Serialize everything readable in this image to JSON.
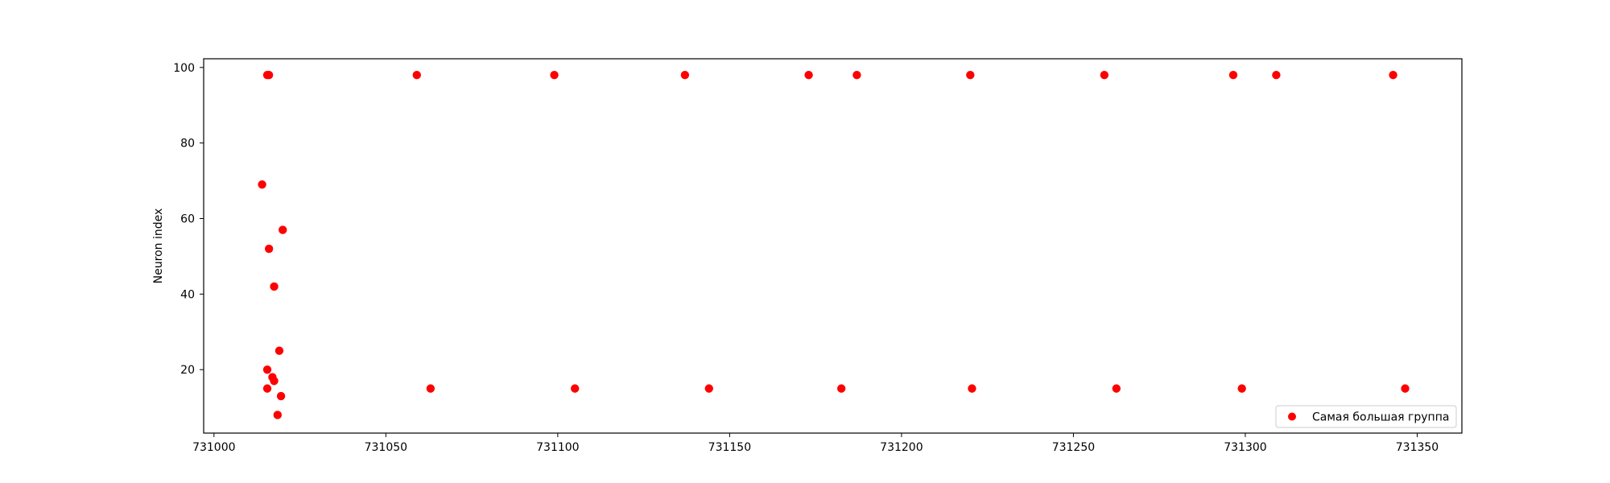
{
  "chart_data": {
    "type": "scatter",
    "title": "",
    "xlabel": "",
    "ylabel": "Neuron index",
    "xlim": [
      730997,
      731363
    ],
    "ylim": [
      3.2,
      102.3
    ],
    "xticks": [
      731000,
      731050,
      731100,
      731150,
      731200,
      731250,
      731300,
      731350
    ],
    "yticks": [
      20,
      40,
      60,
      80,
      100
    ],
    "grid": false,
    "legend_position": "lower-right",
    "series": [
      {
        "name": "Самая большая группа",
        "color": "#ff0000",
        "marker": "circle",
        "x": [
          731014,
          731015.5,
          731015.5,
          731016,
          731015.5,
          731017,
          731017.5,
          731017.5,
          731018.5,
          731019,
          731019.5,
          731020,
          731016,
          731059,
          731063,
          731099,
          731105,
          731137,
          731144,
          731173,
          731182.5,
          731187,
          731220,
          731220.5,
          731259,
          731262.5,
          731296.5,
          731299,
          731309,
          731343,
          731346.5
        ],
        "y": [
          69,
          20,
          15,
          52,
          98,
          18,
          17,
          42,
          8,
          25,
          13,
          57,
          98,
          98,
          15,
          98,
          15,
          98,
          15,
          98,
          15,
          98,
          98,
          15,
          98,
          15,
          98,
          15,
          98,
          98,
          15
        ]
      }
    ]
  }
}
